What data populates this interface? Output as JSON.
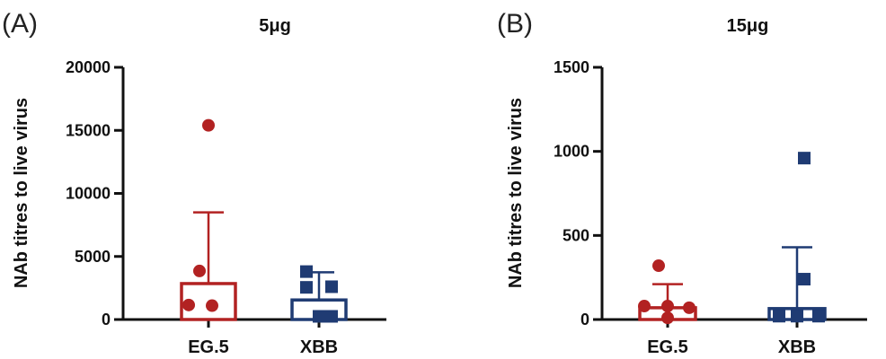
{
  "chart_data": [
    {
      "type": "bar",
      "panel_label": "(A)",
      "title": "5μg",
      "ylabel": "NAb titres to live virus",
      "ylim": [
        0,
        20000
      ],
      "yticks": [
        0,
        5000,
        10000,
        15000,
        20000
      ],
      "categories": [
        "EG.5",
        "XBB"
      ],
      "series": [
        {
          "category": "EG.5",
          "mean": 2850,
          "error_upper": 8500,
          "color": "#b22222",
          "marker": "circle",
          "points": [
            15400,
            3850,
            1150,
            1100
          ]
        },
        {
          "category": "XBB",
          "mean": 1550,
          "error_upper": 3750,
          "color": "#1f3b73",
          "marker": "square",
          "points": [
            3800,
            2600,
            2550,
            250,
            250
          ]
        }
      ]
    },
    {
      "type": "bar",
      "panel_label": "(B)",
      "title": "15μg",
      "ylabel": "NAb titres to live virus",
      "ylim": [
        0,
        1500
      ],
      "yticks": [
        0,
        500,
        1000,
        1500
      ],
      "categories": [
        "EG.5",
        "XBB"
      ],
      "series": [
        {
          "category": "EG.5",
          "mean": 70,
          "error_upper": 210,
          "color": "#b22222",
          "marker": "circle",
          "points": [
            320,
            80,
            80,
            70,
            10
          ]
        },
        {
          "category": "XBB",
          "mean": 65,
          "error_upper": 430,
          "color": "#1f3b73",
          "marker": "square",
          "points": [
            960,
            240,
            20,
            20,
            20
          ]
        }
      ]
    }
  ]
}
